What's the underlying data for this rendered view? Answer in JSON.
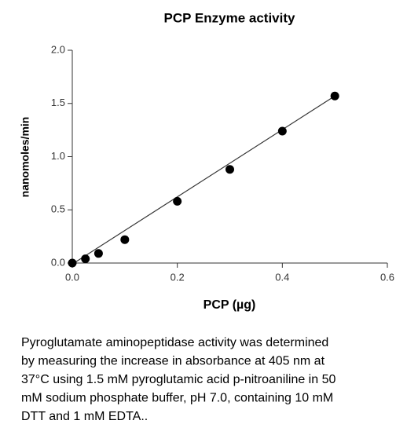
{
  "chart_data": {
    "type": "scatter",
    "title": "PCP Enzyme activity",
    "x_label": "PCP (µg)",
    "y_label": "nanomoles/min",
    "x": [
      0,
      0.025,
      0.05,
      0.1,
      0.2,
      0.3,
      0.4,
      0.5
    ],
    "series": [
      {
        "name": "PCP",
        "color": "#000000",
        "values": [
          0,
          0.04,
          0.09,
          0.22,
          0.58,
          0.88,
          1.24,
          1.57
        ]
      }
    ],
    "trend_line": {
      "color": "#333333",
      "x": [
        0,
        0.5
      ],
      "values": [
        -0.01,
        1.57
      ]
    },
    "xlim": [
      0,
      0.6
    ],
    "ylim": [
      0,
      2.0
    ],
    "xticks": [
      {
        "value": 0,
        "label": "0.0"
      },
      {
        "value": 0.2,
        "label": "0.2"
      },
      {
        "value": 0.4,
        "label": "0.4"
      },
      {
        "value": 0.6,
        "label": "0.6"
      }
    ],
    "yticks": [
      {
        "value": 0,
        "label": "0.0"
      },
      {
        "value": 0.5,
        "label": "0.5"
      },
      {
        "value": 1.0,
        "label": "1.0"
      },
      {
        "value": 1.5,
        "label": "1.5"
      },
      {
        "value": 2.0,
        "label": "2.0"
      }
    ],
    "grid": false
  },
  "caption": {
    "lines": [
      "Pyroglutamate aminopeptidase activity was determined",
      "by measuring the increase in absorbance at 405 nm at",
      "37°C using 1.5 mM pyroglutamic acid p-nitroaniline in 50",
      "mM sodium phosphate buffer, pH 7.0, containing 10 mM",
      "DTT and 1 mM EDTA.."
    ]
  }
}
